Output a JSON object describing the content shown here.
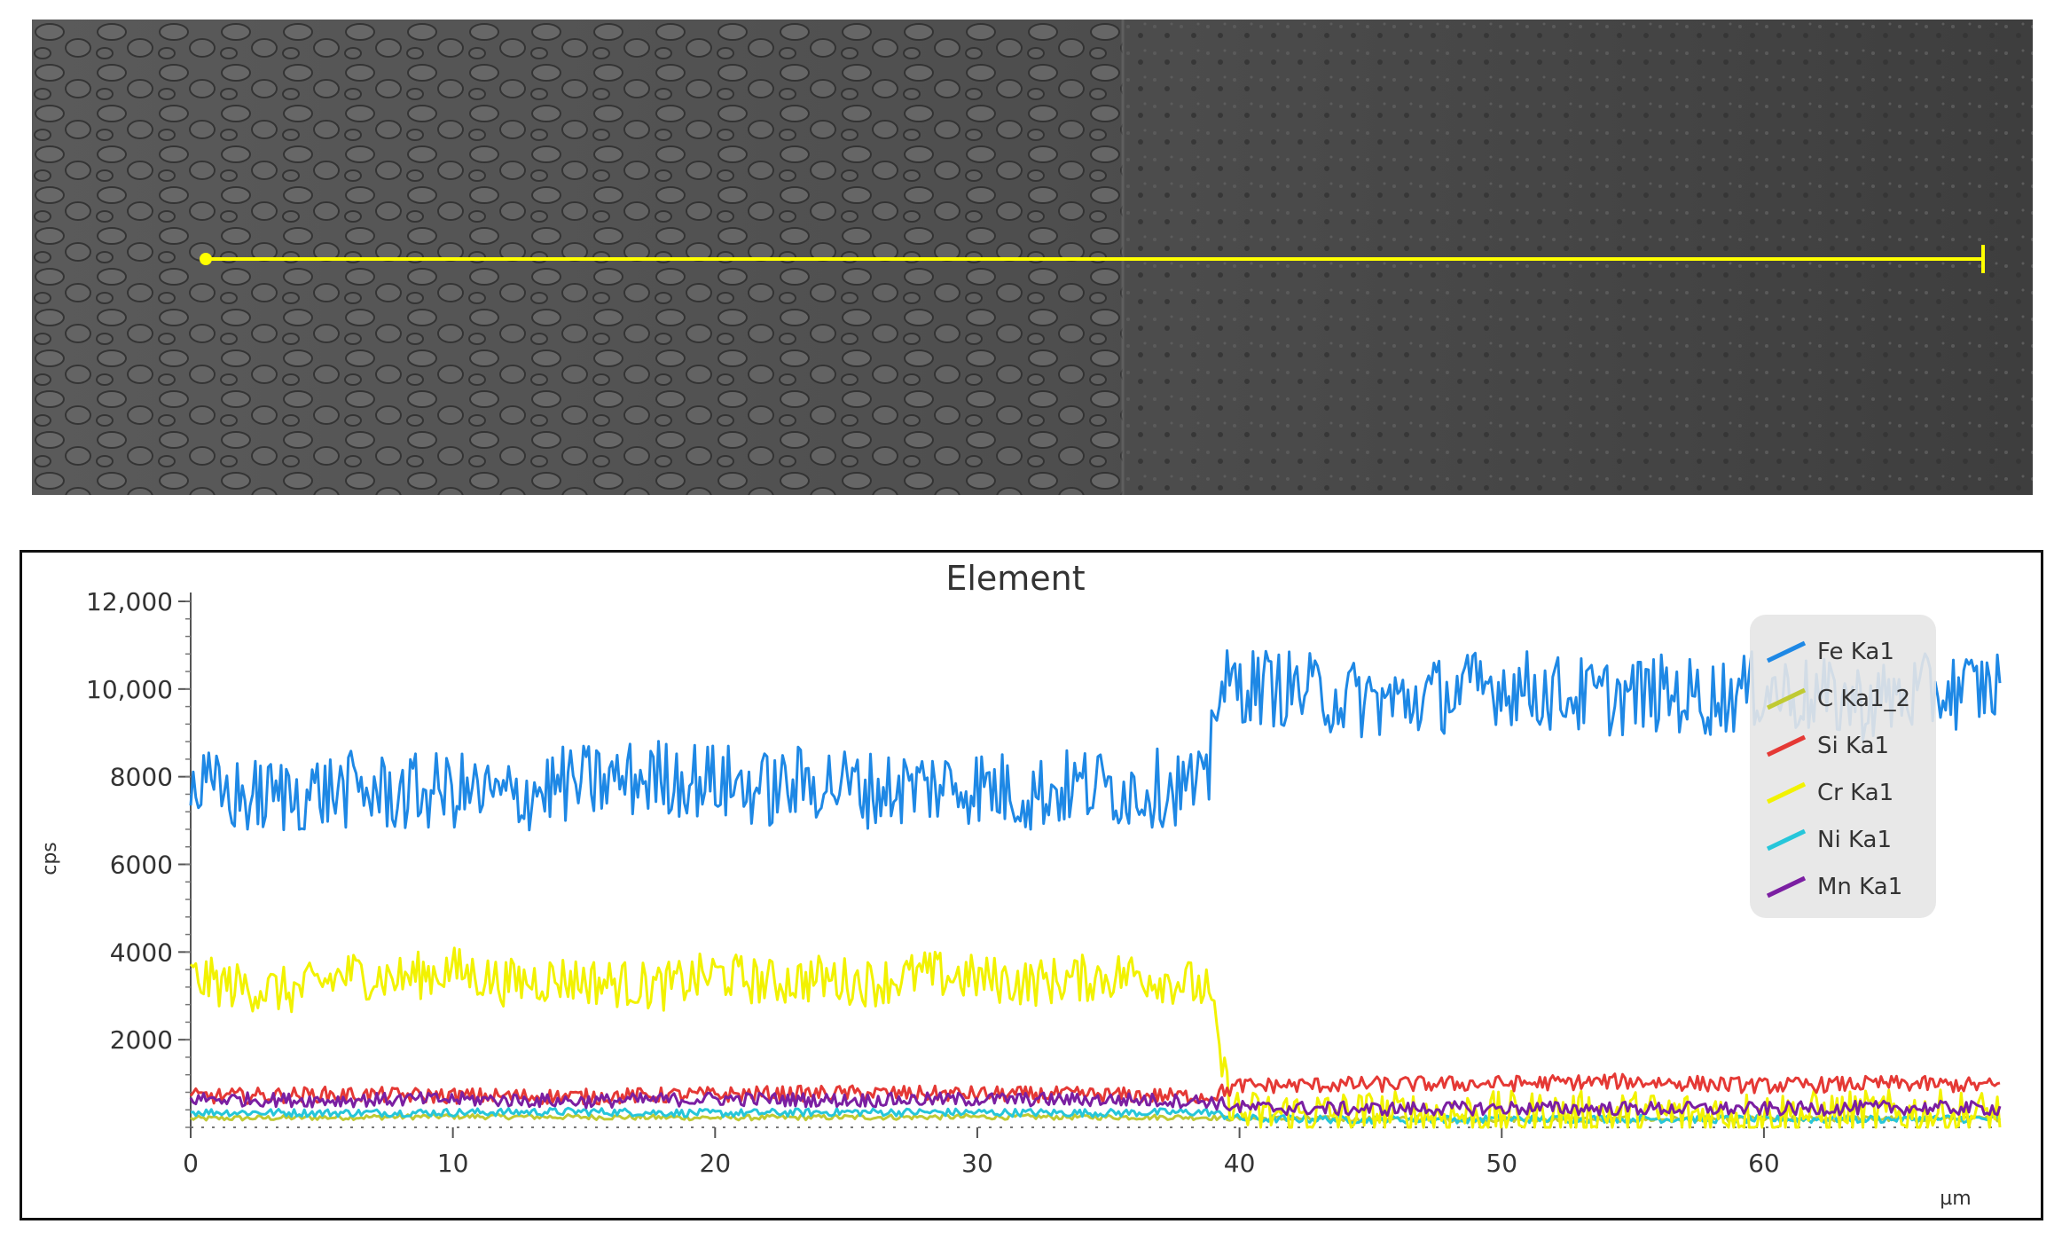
{
  "sem_image": {
    "scan_line_color": "#ffff00"
  },
  "chart_data": {
    "type": "line",
    "title": "Element",
    "xlabel": "µm",
    "ylabel": "cps",
    "xlim": [
      0,
      69
    ],
    "ylim": [
      0,
      12000
    ],
    "x_ticks": [
      0,
      10,
      20,
      30,
      40,
      50,
      60
    ],
    "x_tick_labels": [
      "0",
      "10",
      "20",
      "30",
      "40",
      "50",
      "60"
    ],
    "y_ticks": [
      2000,
      4000,
      6000,
      8000,
      10000,
      12000
    ],
    "y_tick_labels": [
      "2000",
      "4000",
      "6000",
      "8000",
      "10,000",
      "12,000"
    ],
    "grid": false,
    "legend_position": "top-right",
    "series": [
      {
        "name": "Fe Ka1",
        "color": "#1e88e5",
        "x": [
          0,
          2,
          4,
          6,
          8,
          10,
          12,
          14,
          16,
          18,
          20,
          22,
          24,
          26,
          28,
          30,
          32,
          34,
          36,
          38,
          38.8,
          39,
          40,
          42,
          44,
          46,
          48,
          50,
          52,
          54,
          56,
          58,
          60,
          62,
          64,
          66,
          68,
          69
        ],
        "y": [
          7800,
          7500,
          7600,
          7700,
          7600,
          7700,
          7500,
          7800,
          7900,
          8000,
          7900,
          7700,
          7900,
          7700,
          7800,
          7800,
          7600,
          7800,
          7700,
          7800,
          7600,
          9900,
          10100,
          10000,
          9800,
          9700,
          9900,
          10100,
          9900,
          9800,
          9900,
          9800,
          10000,
          9800,
          9700,
          9900,
          10000,
          10100
        ]
      },
      {
        "name": "C Ka1_2",
        "color": "#c0ca33",
        "x": [
          0,
          10,
          20,
          30,
          38.8,
          40,
          50,
          60,
          69
        ],
        "y": [
          200,
          250,
          220,
          240,
          230,
          200,
          180,
          190,
          200
        ]
      },
      {
        "name": "Si Ka1",
        "color": "#e53935",
        "x": [
          0,
          5,
          10,
          15,
          20,
          25,
          30,
          35,
          38.8,
          40,
          45,
          50,
          55,
          60,
          65,
          69
        ],
        "y": [
          700,
          750,
          720,
          700,
          750,
          780,
          760,
          740,
          700,
          950,
          980,
          1000,
          1050,
          950,
          1000,
          950
        ]
      },
      {
        "name": "Cr Ka1",
        "color": "#f2f200",
        "x": [
          0,
          2,
          4,
          6,
          8,
          10,
          12,
          14,
          16,
          18,
          20,
          22,
          24,
          26,
          28,
          30,
          32,
          34,
          36,
          38,
          38.8,
          39.5,
          40,
          45,
          50,
          55,
          60,
          65,
          69
        ],
        "y": [
          3400,
          3200,
          3100,
          3500,
          3400,
          3600,
          3300,
          3400,
          3300,
          3200,
          3500,
          3300,
          3400,
          3300,
          3500,
          3400,
          3300,
          3400,
          3500,
          3300,
          3100,
          900,
          300,
          300,
          280,
          290,
          300,
          310,
          300
        ]
      },
      {
        "name": "Ni Ka1",
        "color": "#26c6da",
        "x": [
          0,
          5,
          10,
          15,
          20,
          25,
          30,
          35,
          38.8,
          40,
          45,
          50,
          55,
          60,
          65,
          69
        ],
        "y": [
          350,
          330,
          340,
          360,
          320,
          350,
          340,
          330,
          350,
          200,
          180,
          190,
          200,
          180,
          190,
          200
        ]
      },
      {
        "name": "Mn Ka1",
        "color": "#7b1fa2",
        "x": [
          0,
          5,
          10,
          15,
          20,
          25,
          30,
          35,
          38.8,
          40,
          45,
          50,
          55,
          60,
          65,
          69
        ],
        "y": [
          650,
          620,
          640,
          600,
          650,
          620,
          640,
          630,
          600,
          450,
          420,
          440,
          430,
          420,
          450,
          430
        ]
      }
    ]
  }
}
